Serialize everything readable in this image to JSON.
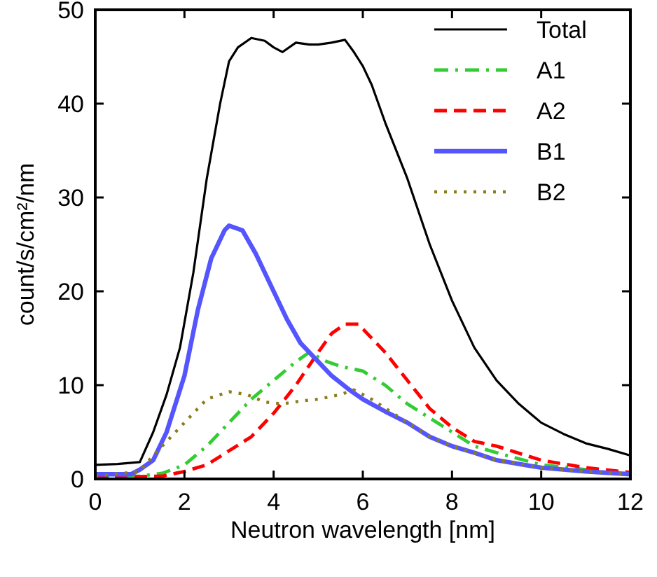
{
  "chart_data": {
    "type": "line",
    "xlabel": "Neutron wavelength [nm]",
    "ylabel": "count/s/cm²/nm",
    "xlim": [
      0,
      12
    ],
    "ylim": [
      0,
      50
    ],
    "xticks": [
      0,
      2,
      4,
      6,
      8,
      10,
      12
    ],
    "yticks": [
      0,
      10,
      20,
      30,
      40,
      50
    ],
    "legend": "top right",
    "grid": false,
    "marker": "none",
    "series": [
      {
        "name": "Total",
        "color": "#000000",
        "line_style": "solid",
        "x": [
          0,
          0.5,
          1.0,
          1.3,
          1.6,
          1.9,
          2.2,
          2.5,
          2.8,
          3.0,
          3.2,
          3.5,
          3.8,
          4.0,
          4.2,
          4.5,
          4.8,
          5.0,
          5.3,
          5.6,
          5.8,
          6.0,
          6.2,
          6.5,
          7.0,
          7.5,
          8.0,
          8.5,
          9.0,
          9.5,
          10,
          10.5,
          11,
          11.5,
          12
        ],
        "values": [
          1.5,
          1.6,
          1.8,
          5,
          9,
          14,
          22,
          32,
          40,
          44.5,
          46,
          47,
          46.7,
          46,
          45.5,
          46.5,
          46.3,
          46.3,
          46.5,
          46.8,
          45.5,
          44,
          42,
          38,
          32,
          25,
          19,
          14,
          10.5,
          8,
          6,
          4.8,
          3.8,
          3.2,
          2.5
        ]
      },
      {
        "name": "A1",
        "color": "#33cc33",
        "line_style": "dashdot",
        "x": [
          0,
          1.0,
          1.5,
          2,
          2.5,
          3.0,
          3.5,
          4,
          4.5,
          4.8,
          5.2,
          5.5,
          6.0,
          6.5,
          7.0,
          7.5,
          8,
          8.5,
          9,
          10,
          11,
          12
        ],
        "values": [
          0.2,
          0.3,
          0.6,
          1.5,
          3.5,
          6,
          8.5,
          10.5,
          12.5,
          13.5,
          12.5,
          12,
          11.5,
          10,
          8,
          6.5,
          5,
          3.5,
          2.8,
          1.5,
          1,
          0.5
        ]
      },
      {
        "name": "A2",
        "color": "#ff0000",
        "line_style": "dashed",
        "x": [
          0,
          1.5,
          2,
          2.5,
          3.0,
          3.5,
          4.0,
          4.5,
          5.0,
          5.3,
          5.6,
          5.9,
          6.1,
          6.5,
          7,
          7.5,
          8,
          8.5,
          9,
          10,
          11,
          12
        ],
        "values": [
          0.2,
          0.3,
          0.8,
          1.5,
          3,
          4.5,
          7,
          10,
          13.5,
          15.5,
          16.5,
          16.5,
          15.5,
          13.5,
          10.5,
          7.5,
          5.5,
          4,
          3.5,
          2,
          1.2,
          0.7
        ]
      },
      {
        "name": "B1",
        "color": "#5555ff",
        "line_style": "solid",
        "x": [
          0,
          0.8,
          1.0,
          1.3,
          1.6,
          2.0,
          2.3,
          2.6,
          2.9,
          3.0,
          3.3,
          3.6,
          4.0,
          4.3,
          4.6,
          5.0,
          5.3,
          5.7,
          6.0,
          6.5,
          7.0,
          7.5,
          8,
          8.5,
          9,
          10,
          11,
          12
        ],
        "values": [
          0.5,
          0.5,
          1,
          2,
          5,
          11,
          18,
          23.5,
          26.5,
          27,
          26.5,
          24,
          20,
          17,
          14.5,
          12.5,
          11,
          9.5,
          8.5,
          7.2,
          6,
          4.5,
          3.5,
          2.8,
          2,
          1.2,
          0.8,
          0.5
        ]
      },
      {
        "name": "B2",
        "color": "#8b7d1a",
        "line_style": "dotted",
        "x": [
          0,
          1.0,
          1.3,
          1.6,
          2.0,
          2.5,
          3.0,
          3.4,
          3.8,
          4.2,
          4.6,
          5.0,
          5.5,
          5.8,
          6.2,
          7,
          7.5,
          8,
          9,
          10,
          11,
          12
        ],
        "values": [
          0.3,
          0.8,
          2.5,
          4,
          6,
          8.5,
          9.3,
          9,
          8.2,
          8,
          8.3,
          8.5,
          9,
          9.5,
          8.5,
          6,
          4.5,
          3.5,
          2,
          1.2,
          0.8,
          0.5
        ]
      }
    ]
  }
}
